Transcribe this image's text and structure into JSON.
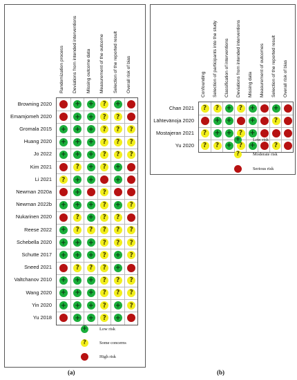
{
  "panel_a": {
    "caption": "(a)",
    "domains": [
      "Randomization process",
      "Deviations from intended interventions",
      "Missing outcome data",
      "Measurement of the outcome",
      "Selection of the reported result",
      "Overall risk of bias"
    ],
    "studies": [
      {
        "name": "Browning 2020",
        "ratings": [
          "high",
          "low",
          "low",
          "some",
          "low",
          "high"
        ]
      },
      {
        "name": "Emamjomeh 2020",
        "ratings": [
          "high",
          "low",
          "low",
          "some",
          "some",
          "high"
        ]
      },
      {
        "name": "Gromala 2015",
        "ratings": [
          "low",
          "low",
          "low",
          "some",
          "some",
          "some"
        ]
      },
      {
        "name": "Huang 2020",
        "ratings": [
          "low",
          "low",
          "low",
          "some",
          "some",
          "some"
        ]
      },
      {
        "name": "Jo 2022",
        "ratings": [
          "low",
          "low",
          "low",
          "some",
          "some",
          "some"
        ]
      },
      {
        "name": "Kim 2021",
        "ratings": [
          "high",
          "some",
          "low",
          "some",
          "low",
          "high"
        ]
      },
      {
        "name": "Li 2021",
        "ratings": [
          "some",
          "low",
          "low",
          "high",
          "low",
          "high"
        ]
      },
      {
        "name": "Newman 2020a",
        "ratings": [
          "high",
          "low",
          "high",
          "some",
          "high",
          "high"
        ]
      },
      {
        "name": "Newman 2022b",
        "ratings": [
          "low",
          "low",
          "low",
          "some",
          "low",
          "some"
        ]
      },
      {
        "name": "Nukarinen 2020",
        "ratings": [
          "high",
          "some",
          "low",
          "some",
          "some",
          "high"
        ]
      },
      {
        "name": "Reese 2022",
        "ratings": [
          "low",
          "some",
          "some",
          "some",
          "some",
          "some"
        ]
      },
      {
        "name": "Schebella 2020",
        "ratings": [
          "low",
          "low",
          "low",
          "some",
          "some",
          "some"
        ]
      },
      {
        "name": "Schutte 2017",
        "ratings": [
          "low",
          "low",
          "low",
          "some",
          "low",
          "some"
        ]
      },
      {
        "name": "Sneed 2021",
        "ratings": [
          "high",
          "some",
          "some",
          "some",
          "low",
          "high"
        ]
      },
      {
        "name": "Valtchanov 2010",
        "ratings": [
          "low",
          "low",
          "low",
          "some",
          "some",
          "some"
        ]
      },
      {
        "name": "Wang 2020",
        "ratings": [
          "low",
          "low",
          "low",
          "some",
          "some",
          "some"
        ]
      },
      {
        "name": "Yin 2020",
        "ratings": [
          "low",
          "low",
          "low",
          "some",
          "low",
          "some"
        ]
      },
      {
        "name": "Yu 2018",
        "ratings": [
          "high",
          "low",
          "low",
          "some",
          "low",
          "high"
        ]
      }
    ],
    "legend": [
      {
        "level": "low",
        "symbol": "+",
        "label": "Low risk"
      },
      {
        "level": "some",
        "symbol": "?",
        "label": "Some concerns"
      },
      {
        "level": "high",
        "symbol": "",
        "label": "High risk"
      }
    ]
  },
  "panel_b": {
    "caption": "(b)",
    "domains": [
      "Confounding",
      "Selection of participants into the study",
      "Classification of interventions",
      "Deviations from intended interventions",
      "Missing data",
      "Measurement of outcomes",
      "Selection of the reported result",
      "Overall risk of bias"
    ],
    "studies": [
      {
        "name": "Chan 2021",
        "ratings": [
          "some",
          "some",
          "low",
          "some",
          "low",
          "high",
          "low",
          "high"
        ]
      },
      {
        "name": "Lähtevänoja 2020",
        "ratings": [
          "high",
          "low",
          "low",
          "high",
          "low",
          "high",
          "some",
          "high"
        ]
      },
      {
        "name": "Mostajeran 2021",
        "ratings": [
          "some",
          "low",
          "low",
          "some",
          "low",
          "high",
          "high",
          "high"
        ]
      },
      {
        "name": "Yu 2020",
        "ratings": [
          "some",
          "some",
          "low",
          "some",
          "low",
          "high",
          "some",
          "high"
        ]
      }
    ],
    "legend": [
      {
        "level": "low",
        "symbol": "+",
        "label": "Low risk"
      },
      {
        "level": "some",
        "symbol": "?",
        "label": "Moderate risk"
      },
      {
        "level": "high",
        "symbol": "",
        "label": "Serious risk"
      }
    ]
  },
  "colors": {
    "low": "#1aae3a",
    "some": "#f2ee1c",
    "high": "#b71111"
  }
}
